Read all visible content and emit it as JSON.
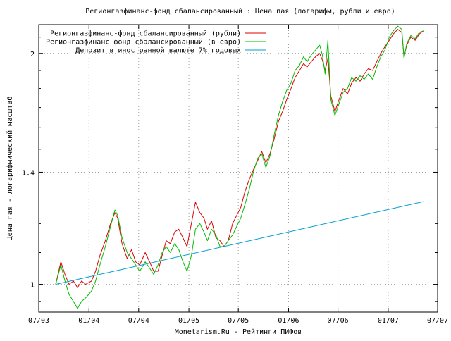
{
  "chart_data": {
    "type": "line",
    "title": "Регионгазфинанс-фонд сбалансированный : Цена пая (логарифм, рубли и евро)",
    "xlabel": "Monetarism.Ru - Рейтинги ПИФов",
    "ylabel": "Цена пая - логарифмический масштаб",
    "y_scale": "log",
    "ylim": [
      0.92,
      2.18
    ],
    "xlim": [
      "2003-07-01",
      "2007-07-01"
    ],
    "grid": true,
    "legend_position": "top-right",
    "x_ticks": [
      {
        "date": "2003-07-01",
        "label": "07/03"
      },
      {
        "date": "2004-01-01",
        "label": "01/04"
      },
      {
        "date": "2004-07-01",
        "label": "07/04"
      },
      {
        "date": "2005-01-01",
        "label": "01/05"
      },
      {
        "date": "2005-07-01",
        "label": "07/05"
      },
      {
        "date": "2006-01-01",
        "label": "01/06"
      },
      {
        "date": "2006-07-01",
        "label": "07/06"
      },
      {
        "date": "2007-01-01",
        "label": "01/07"
      },
      {
        "date": "2007-07-01",
        "label": "07/07"
      }
    ],
    "y_ticks": [
      {
        "value": 1,
        "label": "1"
      },
      {
        "value": 1.4,
        "label": "1.4"
      },
      {
        "value": 2,
        "label": "2"
      }
    ],
    "series": [
      {
        "name": "Регионгазфинанс-фонд сбалансированный (рубли)",
        "color": "#dd0000",
        "points": [
          [
            "2003-09-01",
            1.0
          ],
          [
            "2003-09-20",
            1.07
          ],
          [
            "2003-10-05",
            1.03
          ],
          [
            "2003-10-20",
            1.0
          ],
          [
            "2003-11-05",
            1.01
          ],
          [
            "2003-11-20",
            0.99
          ],
          [
            "2003-12-05",
            1.01
          ],
          [
            "2003-12-20",
            1.0
          ],
          [
            "2004-01-10",
            1.01
          ],
          [
            "2004-01-25",
            1.04
          ],
          [
            "2004-02-10",
            1.09
          ],
          [
            "2004-03-01",
            1.14
          ],
          [
            "2004-03-20",
            1.2
          ],
          [
            "2004-04-05",
            1.24
          ],
          [
            "2004-04-15",
            1.22
          ],
          [
            "2004-05-01",
            1.13
          ],
          [
            "2004-05-20",
            1.08
          ],
          [
            "2004-06-05",
            1.11
          ],
          [
            "2004-06-20",
            1.07
          ],
          [
            "2004-07-05",
            1.06
          ],
          [
            "2004-07-25",
            1.1
          ],
          [
            "2004-08-10",
            1.07
          ],
          [
            "2004-08-25",
            1.04
          ],
          [
            "2004-09-10",
            1.04
          ],
          [
            "2004-09-25",
            1.09
          ],
          [
            "2004-10-10",
            1.14
          ],
          [
            "2004-10-25",
            1.13
          ],
          [
            "2004-11-10",
            1.17
          ],
          [
            "2004-11-25",
            1.18
          ],
          [
            "2004-12-10",
            1.15
          ],
          [
            "2004-12-25",
            1.12
          ],
          [
            "2005-01-10",
            1.2
          ],
          [
            "2005-01-25",
            1.28
          ],
          [
            "2005-02-10",
            1.24
          ],
          [
            "2005-02-25",
            1.22
          ],
          [
            "2005-03-10",
            1.18
          ],
          [
            "2005-03-25",
            1.21
          ],
          [
            "2005-04-10",
            1.15
          ],
          [
            "2005-04-25",
            1.14
          ],
          [
            "2005-05-10",
            1.12
          ],
          [
            "2005-05-25",
            1.14
          ],
          [
            "2005-06-10",
            1.2
          ],
          [
            "2005-06-25",
            1.23
          ],
          [
            "2005-07-10",
            1.26
          ],
          [
            "2005-07-25",
            1.32
          ],
          [
            "2005-08-10",
            1.37
          ],
          [
            "2005-08-25",
            1.41
          ],
          [
            "2005-09-10",
            1.45
          ],
          [
            "2005-09-25",
            1.49
          ],
          [
            "2005-10-10",
            1.44
          ],
          [
            "2005-10-25",
            1.48
          ],
          [
            "2005-11-10",
            1.55
          ],
          [
            "2005-11-25",
            1.63
          ],
          [
            "2005-12-10",
            1.68
          ],
          [
            "2005-12-25",
            1.74
          ],
          [
            "2006-01-10",
            1.8
          ],
          [
            "2006-01-25",
            1.86
          ],
          [
            "2006-02-10",
            1.9
          ],
          [
            "2006-02-25",
            1.94
          ],
          [
            "2006-03-10",
            1.92
          ],
          [
            "2006-03-25",
            1.95
          ],
          [
            "2006-04-10",
            1.98
          ],
          [
            "2006-04-25",
            2.0
          ],
          [
            "2006-05-05",
            1.96
          ],
          [
            "2006-05-15",
            1.9
          ],
          [
            "2006-05-25",
            1.97
          ],
          [
            "2006-06-05",
            1.76
          ],
          [
            "2006-06-20",
            1.68
          ],
          [
            "2006-07-05",
            1.74
          ],
          [
            "2006-07-20",
            1.8
          ],
          [
            "2006-08-05",
            1.77
          ],
          [
            "2006-08-20",
            1.83
          ],
          [
            "2006-09-05",
            1.86
          ],
          [
            "2006-09-20",
            1.84
          ],
          [
            "2006-10-05",
            1.88
          ],
          [
            "2006-10-20",
            1.91
          ],
          [
            "2006-11-05",
            1.9
          ],
          [
            "2006-11-20",
            1.95
          ],
          [
            "2006-12-05",
            2.0
          ],
          [
            "2006-12-20",
            2.04
          ],
          [
            "2007-01-05",
            2.08
          ],
          [
            "2007-01-20",
            2.12
          ],
          [
            "2007-02-05",
            2.15
          ],
          [
            "2007-02-20",
            2.13
          ],
          [
            "2007-02-28",
            1.98
          ],
          [
            "2007-03-10",
            2.05
          ],
          [
            "2007-03-25",
            2.1
          ],
          [
            "2007-04-10",
            2.08
          ],
          [
            "2007-04-25",
            2.12
          ],
          [
            "2007-05-10",
            2.14
          ]
        ]
      },
      {
        "name": "Регионгазфинанс-фонд сбалансированный (в евро)",
        "color": "#00bb00",
        "points": [
          [
            "2003-09-01",
            1.0
          ],
          [
            "2003-09-20",
            1.06
          ],
          [
            "2003-10-05",
            1.01
          ],
          [
            "2003-10-20",
            0.97
          ],
          [
            "2003-11-05",
            0.95
          ],
          [
            "2003-11-20",
            0.93
          ],
          [
            "2003-12-05",
            0.95
          ],
          [
            "2003-12-20",
            0.96
          ],
          [
            "2004-01-10",
            0.98
          ],
          [
            "2004-01-25",
            1.01
          ],
          [
            "2004-02-10",
            1.06
          ],
          [
            "2004-03-01",
            1.12
          ],
          [
            "2004-03-20",
            1.19
          ],
          [
            "2004-04-05",
            1.25
          ],
          [
            "2004-04-15",
            1.23
          ],
          [
            "2004-05-01",
            1.15
          ],
          [
            "2004-05-20",
            1.1
          ],
          [
            "2004-06-05",
            1.08
          ],
          [
            "2004-06-20",
            1.06
          ],
          [
            "2004-07-05",
            1.04
          ],
          [
            "2004-07-25",
            1.07
          ],
          [
            "2004-08-10",
            1.05
          ],
          [
            "2004-08-25",
            1.03
          ],
          [
            "2004-09-10",
            1.06
          ],
          [
            "2004-09-25",
            1.1
          ],
          [
            "2004-10-10",
            1.12
          ],
          [
            "2004-10-25",
            1.1
          ],
          [
            "2004-11-10",
            1.13
          ],
          [
            "2004-11-25",
            1.11
          ],
          [
            "2004-12-10",
            1.07
          ],
          [
            "2004-12-25",
            1.04
          ],
          [
            "2005-01-10",
            1.09
          ],
          [
            "2005-01-25",
            1.18
          ],
          [
            "2005-02-10",
            1.2
          ],
          [
            "2005-02-25",
            1.17
          ],
          [
            "2005-03-10",
            1.14
          ],
          [
            "2005-03-25",
            1.18
          ],
          [
            "2005-04-10",
            1.16
          ],
          [
            "2005-04-25",
            1.12
          ],
          [
            "2005-05-10",
            1.12
          ],
          [
            "2005-05-25",
            1.14
          ],
          [
            "2005-06-10",
            1.16
          ],
          [
            "2005-06-25",
            1.19
          ],
          [
            "2005-07-10",
            1.22
          ],
          [
            "2005-07-25",
            1.27
          ],
          [
            "2005-08-10",
            1.33
          ],
          [
            "2005-08-25",
            1.4
          ],
          [
            "2005-09-10",
            1.46
          ],
          [
            "2005-09-25",
            1.48
          ],
          [
            "2005-10-10",
            1.42
          ],
          [
            "2005-10-25",
            1.47
          ],
          [
            "2005-11-10",
            1.57
          ],
          [
            "2005-11-25",
            1.66
          ],
          [
            "2005-12-10",
            1.73
          ],
          [
            "2005-12-25",
            1.79
          ],
          [
            "2006-01-10",
            1.83
          ],
          [
            "2006-01-25",
            1.9
          ],
          [
            "2006-02-10",
            1.93
          ],
          [
            "2006-02-25",
            1.98
          ],
          [
            "2006-03-10",
            1.95
          ],
          [
            "2006-03-25",
            1.99
          ],
          [
            "2006-04-10",
            2.02
          ],
          [
            "2006-04-25",
            2.05
          ],
          [
            "2006-05-05",
            1.99
          ],
          [
            "2006-05-15",
            1.88
          ],
          [
            "2006-05-25",
            2.08
          ],
          [
            "2006-06-05",
            1.74
          ],
          [
            "2006-06-20",
            1.66
          ],
          [
            "2006-07-05",
            1.72
          ],
          [
            "2006-07-20",
            1.78
          ],
          [
            "2006-08-05",
            1.8
          ],
          [
            "2006-08-20",
            1.86
          ],
          [
            "2006-09-05",
            1.84
          ],
          [
            "2006-09-20",
            1.87
          ],
          [
            "2006-10-05",
            1.85
          ],
          [
            "2006-10-20",
            1.88
          ],
          [
            "2006-11-05",
            1.85
          ],
          [
            "2006-11-20",
            1.92
          ],
          [
            "2006-12-05",
            1.98
          ],
          [
            "2006-12-20",
            2.02
          ],
          [
            "2007-01-05",
            2.1
          ],
          [
            "2007-01-20",
            2.14
          ],
          [
            "2007-02-05",
            2.17
          ],
          [
            "2007-02-20",
            2.15
          ],
          [
            "2007-02-28",
            1.97
          ],
          [
            "2007-03-10",
            2.06
          ],
          [
            "2007-03-25",
            2.11
          ],
          [
            "2007-04-10",
            2.09
          ],
          [
            "2007-04-25",
            2.13
          ],
          [
            "2007-05-10",
            2.14
          ]
        ]
      },
      {
        "name": "Депозит в иностранной валюте 7% годовых",
        "color": "#00a0d0",
        "points": [
          [
            "2003-09-01",
            1.0
          ],
          [
            "2007-05-10",
            1.282
          ]
        ]
      }
    ]
  }
}
